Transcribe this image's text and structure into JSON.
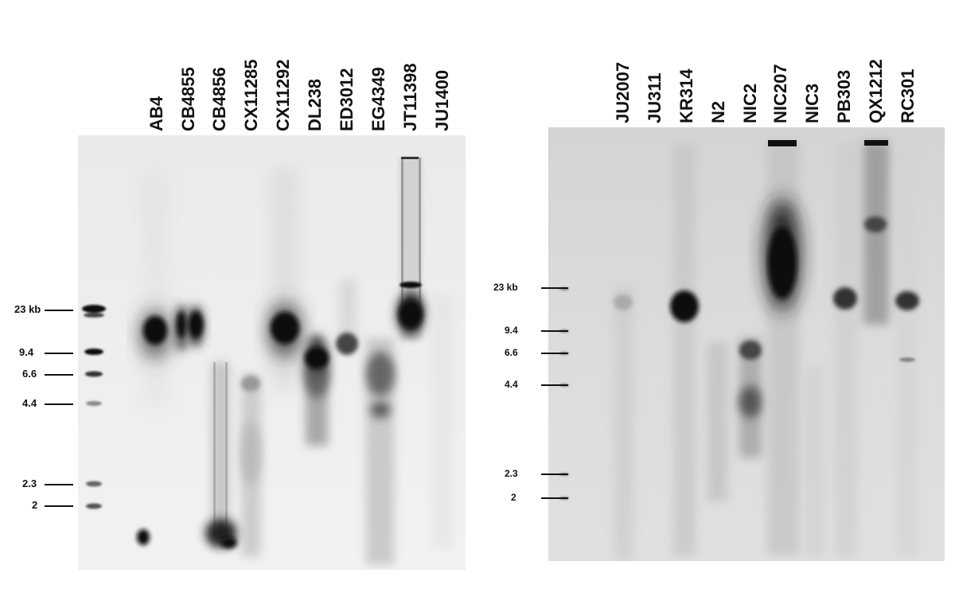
{
  "left_blot": {
    "lanes": [
      "AB4",
      "CB4855",
      "CB4856",
      "CX11285",
      "CX11292",
      "DL238",
      "ED3012",
      "EG4349",
      "JT11398",
      "JU1400"
    ],
    "size_markers": [
      "23 kb",
      "9.4",
      "6.6",
      "4.4",
      "2.3",
      "2"
    ]
  },
  "right_blot": {
    "lanes": [
      "JU2007",
      "JU311",
      "KR314",
      "N2",
      "NIC2",
      "NIC207",
      "NIC3",
      "PB303",
      "QX1212",
      "RC301"
    ],
    "size_markers": [
      "23 kb",
      "9.4",
      "6.6",
      "4.4",
      "2.3",
      "2"
    ]
  }
}
